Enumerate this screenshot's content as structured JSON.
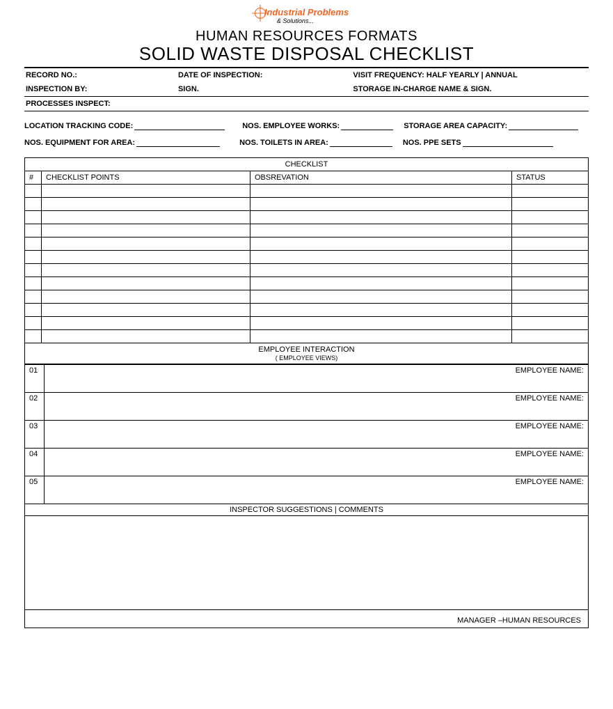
{
  "logo": {
    "text_primary": "Industrial Problems",
    "text_secondary": "& Solutions...",
    "color_primary": "#f26522",
    "color_secondary": "#000000"
  },
  "title_line1": "HUMAN RESOURCES FORMATS",
  "title_line2": "SOLID WASTE DISPOSAL CHECKLIST",
  "header": {
    "record_no": "RECORD NO.:",
    "date_inspection": "DATE OF INSPECTION:",
    "visit_frequency": "VISIT FREQUENCY:  HALF YEARLY | ANNUAL",
    "inspection_by": "INSPECTION BY:",
    "sign": "SIGN.",
    "storage_incharge": "STORAGE IN-CHARGE NAME & SIGN.",
    "processes_inspect": "PROCESSES INSPECT:"
  },
  "fields_row1": {
    "location_tracking": "LOCATION TRACKING CODE:",
    "nos_employee": "NOS. EMPLOYEE WORKS:",
    "storage_capacity": "STORAGE AREA CAPACITY:"
  },
  "fields_row2": {
    "nos_equipment": "NOS. EQUIPMENT FOR AREA:",
    "nos_toilets": "NOS. TOILETS IN AREA:",
    "nos_ppe": "NOS.  PPE SETS"
  },
  "checklist": {
    "title": "CHECKLIST",
    "columns": {
      "num": "#",
      "points": "CHECKLIST POINTS",
      "observation": "OBSREVATION",
      "status": "STATUS"
    },
    "row_count": 12
  },
  "employee_interaction": {
    "title": "EMPLOYEE INTERACTION",
    "subtitle": "( EMPLOYEE VIEWS)",
    "name_label": "EMPLOYEE NAME:",
    "rows": [
      "01",
      "02",
      "03",
      "04",
      "05"
    ]
  },
  "suggestions": {
    "title": "INSPECTOR SUGGESTIONS | COMMENTS"
  },
  "footer": {
    "manager": "MANAGER –HUMAN RESOURCES"
  },
  "colors": {
    "line": "#000000",
    "background": "#ffffff"
  }
}
